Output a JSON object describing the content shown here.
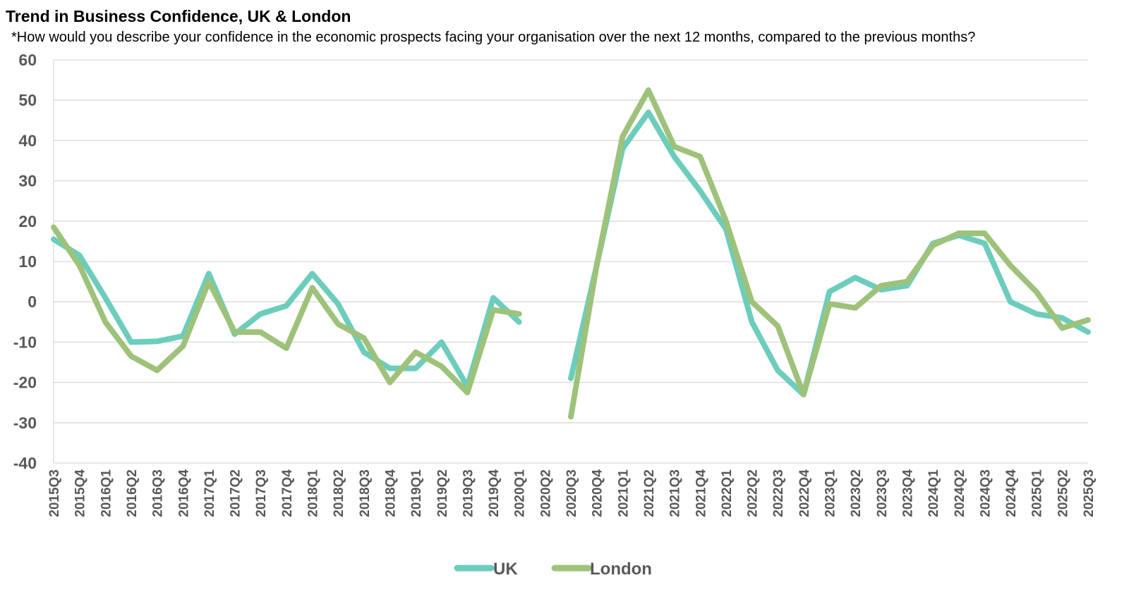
{
  "chart_data": {
    "type": "line",
    "title": "Trend in Business Confidence, UK & London",
    "subtitle": "*How would you describe your confidence in the economic prospects facing your organisation over the next 12 months, compared to the previous months?",
    "xlabel": "",
    "ylabel": "",
    "ylim": [
      -40,
      60
    ],
    "yticks": [
      60,
      50,
      40,
      30,
      20,
      10,
      0,
      -10,
      -20,
      -30,
      -40
    ],
    "grid": true,
    "legend_position": "bottom",
    "categories": [
      "2015Q3",
      "2015Q4",
      "2016Q1",
      "2016Q2",
      "2016Q3",
      "2016Q4",
      "2017Q1",
      "2017Q2",
      "2017Q3",
      "2017Q4",
      "2018Q1",
      "2018Q2",
      "2018Q3",
      "2018Q4",
      "2019Q1",
      "2019Q2",
      "2019Q3",
      "2019Q4",
      "2020Q1",
      "2020Q2",
      "2020Q3",
      "2020Q4",
      "2021Q1",
      "2021Q2",
      "2021Q3",
      "2021Q4",
      "2022Q1",
      "2022Q2",
      "2022Q3",
      "2022Q4",
      "2023Q1",
      "2023Q2",
      "2023Q3",
      "2023Q4",
      "2024Q1",
      "2024Q2",
      "2024Q3",
      "2024Q4",
      "2025Q1",
      "2025Q2",
      "2025Q3"
    ],
    "series": [
      {
        "name": "UK",
        "color": "#6DCDBC",
        "values": [
          15.5,
          11.5,
          1,
          -10,
          -9.8,
          -8.5,
          7,
          -8,
          -3,
          -1,
          7,
          -0.5,
          -12.5,
          -16.5,
          -16.5,
          -10,
          -21,
          1,
          -5,
          null,
          -19,
          9,
          38,
          47,
          36,
          27.5,
          18,
          -5,
          -17,
          -23,
          2.5,
          6,
          3,
          4,
          14.5,
          16.5,
          14.5,
          0,
          -3,
          -4,
          -7.5
        ]
      },
      {
        "name": "London",
        "color": "#9EC27A",
        "values": [
          18.5,
          9,
          -5,
          -13.5,
          -17,
          -11,
          5,
          -7.5,
          -7.5,
          -11.5,
          3.5,
          -5.5,
          -9,
          -20,
          -12.5,
          -16,
          -22.5,
          -2,
          -3,
          null,
          -28.5,
          9,
          41,
          52.5,
          38.5,
          36,
          20,
          0,
          -6,
          -23,
          -0.5,
          -1.5,
          4,
          5,
          14,
          17,
          17,
          9,
          2.5,
          -6.5,
          -4.5
        ]
      }
    ]
  }
}
